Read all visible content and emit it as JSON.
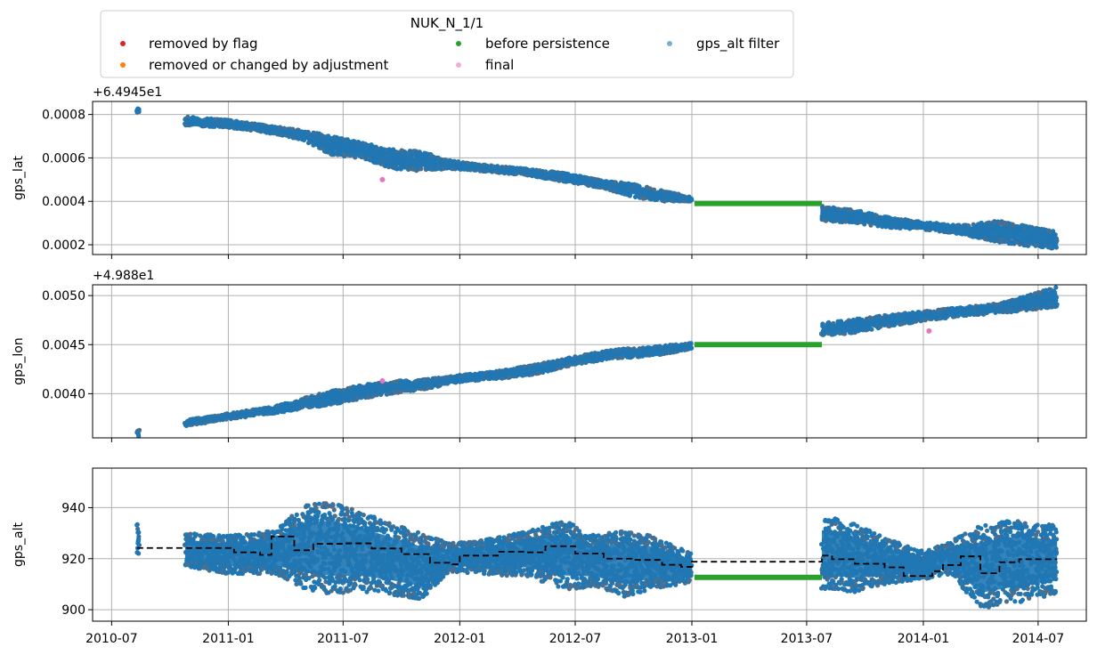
{
  "legend": {
    "title": "NUK_N_1/1",
    "location": "top-left, above first panel",
    "entries": [
      {
        "label": "removed by flag",
        "color": "#d62728"
      },
      {
        "label": "removed or changed by adjustment",
        "color": "#ff7f0e"
      },
      {
        "label": "before persistence",
        "color": "#2ca02c"
      },
      {
        "label": "final",
        "color": "#e377c2"
      },
      {
        "label": "gps_alt filter",
        "color": "#1f77b4"
      }
    ]
  },
  "colors": {
    "data": "#1f77b4",
    "data_alt": "#4a6f8f",
    "persistence": "#2ca02c",
    "final": "#e377c2",
    "filter_line": "#000000",
    "grid": "#b0b0b0"
  },
  "x_axis": {
    "type": "date",
    "range": [
      "2010-06-01",
      "2014-09-15"
    ],
    "ticks": [
      {
        "date": "2010-07-01",
        "label": "2010-07"
      },
      {
        "date": "2011-01-01",
        "label": "2011-01"
      },
      {
        "date": "2011-07-01",
        "label": "2011-07"
      },
      {
        "date": "2012-01-01",
        "label": "2012-01"
      },
      {
        "date": "2012-07-01",
        "label": "2012-07"
      },
      {
        "date": "2013-01-01",
        "label": "2013-01"
      },
      {
        "date": "2013-07-01",
        "label": "2013-07"
      },
      {
        "date": "2014-01-01",
        "label": "2014-01"
      },
      {
        "date": "2014-07-01",
        "label": "2014-07"
      }
    ]
  },
  "chart_data": [
    {
      "type": "scatter",
      "ylabel": "gps_lat",
      "offset_text": "+6.4945e1",
      "ylim": [
        0.000155,
        0.00086
      ],
      "yticks": [
        {
          "v": 0.0002,
          "label": "0.0002"
        },
        {
          "v": 0.0004,
          "label": "0.0004"
        },
        {
          "v": 0.0006,
          "label": "0.0006"
        },
        {
          "v": 0.0008,
          "label": "0.0008"
        }
      ],
      "grid": true,
      "series": [
        {
          "name": "gps_alt filter",
          "style": "band",
          "segments": [
            {
              "points": [
                [
                  "2010-08-10",
                  0.00083,
                  0.00081
                ],
                [
                  "2010-08-14",
                  0.00083,
                  0.00081
                ]
              ]
            },
            {
              "points": [
                [
                  "2010-10-25",
                  0.00079,
                  0.00075
                ],
                [
                  "2011-01-01",
                  0.000775,
                  0.00074
                ],
                [
                  "2011-03-15",
                  0.000745,
                  0.00071
                ],
                [
                  "2011-05-01",
                  0.000725,
                  0.00068
                ],
                [
                  "2011-06-15",
                  0.0007,
                  0.00061
                ],
                [
                  "2011-08-01",
                  0.00067,
                  0.0006
                ],
                [
                  "2011-09-15",
                  0.00064,
                  0.00055
                ],
                [
                  "2011-11-01",
                  0.00063,
                  0.00054
                ],
                [
                  "2011-12-15",
                  0.00059,
                  0.00055
                ],
                [
                  "2012-02-01",
                  0.00057,
                  0.00054
                ],
                [
                  "2012-04-15",
                  0.00055,
                  0.00052
                ],
                [
                  "2012-06-15",
                  0.00053,
                  0.00049
                ],
                [
                  "2012-08-15",
                  0.000495,
                  0.00046
                ],
                [
                  "2012-10-01",
                  0.00048,
                  0.00042
                ],
                [
                  "2012-11-15",
                  0.00045,
                  0.0004
                ],
                [
                  "2013-01-01",
                  0.00042,
                  0.0004
                ]
              ]
            },
            {
              "points": [
                [
                  "2013-07-25",
                  0.00038,
                  0.00031
                ],
                [
                  "2013-09-15",
                  0.00036,
                  0.0003
                ],
                [
                  "2013-11-01",
                  0.00033,
                  0.00028
                ],
                [
                  "2014-01-01",
                  0.000305,
                  0.00027
                ],
                [
                  "2014-03-01",
                  0.00029,
                  0.00025
                ],
                [
                  "2014-05-01",
                  0.00031,
                  0.00021
                ],
                [
                  "2014-07-31",
                  0.00026,
                  0.00018
                ]
              ]
            }
          ]
        },
        {
          "name": "before persistence",
          "style": "line",
          "points": [
            [
              "2013-01-05",
              0.00039
            ],
            [
              "2013-07-25",
              0.00039
            ]
          ]
        },
        {
          "name": "final",
          "style": "points",
          "points": [
            [
              "2011-09-01",
              0.0005
            ]
          ]
        }
      ]
    },
    {
      "type": "scatter",
      "ylabel": "gps_lon",
      "offset_text": "+4.988e1",
      "ylim": [
        0.00355,
        0.00511
      ],
      "yticks": [
        {
          "v": 0.004,
          "label": "0.0040"
        },
        {
          "v": 0.0045,
          "label": "0.0045"
        },
        {
          "v": 0.005,
          "label": "0.0050"
        }
      ],
      "grid": true,
      "series": [
        {
          "name": "gps_alt filter",
          "style": "band",
          "segments": [
            {
              "points": [
                [
                  "2010-08-10",
                  0.00363,
                  0.00356
                ],
                [
                  "2010-08-14",
                  0.00363,
                  0.00356
                ]
              ]
            },
            {
              "points": [
                [
                  "2010-10-25",
                  0.00373,
                  0.00367
                ],
                [
                  "2011-01-01",
                  0.0038,
                  0.00374
                ],
                [
                  "2011-03-15",
                  0.00387,
                  0.0038
                ],
                [
                  "2011-05-01",
                  0.00396,
                  0.00385
                ],
                [
                  "2011-06-15",
                  0.00403,
                  0.00389
                ],
                [
                  "2011-08-01",
                  0.00409,
                  0.00395
                ],
                [
                  "2011-09-15",
                  0.00413,
                  0.004
                ],
                [
                  "2011-11-01",
                  0.00414,
                  0.00404
                ],
                [
                  "2012-01-01",
                  0.00419,
                  0.00412
                ],
                [
                  "2012-03-01",
                  0.00423,
                  0.00415
                ],
                [
                  "2012-05-01",
                  0.0043,
                  0.0042
                ],
                [
                  "2012-07-01",
                  0.00438,
                  0.0043
                ],
                [
                  "2012-09-01",
                  0.00445,
                  0.00436
                ],
                [
                  "2012-11-01",
                  0.00448,
                  0.00438
                ],
                [
                  "2013-01-01",
                  0.00452,
                  0.00446
                ]
              ]
            },
            {
              "points": [
                [
                  "2013-07-25",
                  0.00472,
                  0.00459
                ],
                [
                  "2013-09-15",
                  0.00476,
                  0.00462
                ],
                [
                  "2013-11-01",
                  0.0048,
                  0.00468
                ],
                [
                  "2014-01-01",
                  0.00484,
                  0.00474
                ],
                [
                  "2014-03-01",
                  0.00488,
                  0.00479
                ],
                [
                  "2014-05-01",
                  0.00492,
                  0.00482
                ],
                [
                  "2014-07-31",
                  0.00509,
                  0.00488
                ]
              ]
            }
          ]
        },
        {
          "name": "before persistence",
          "style": "line",
          "points": [
            [
              "2013-01-05",
              0.0045
            ],
            [
              "2013-07-25",
              0.0045
            ]
          ]
        },
        {
          "name": "final",
          "style": "points",
          "points": [
            [
              "2011-09-01",
              0.00413
            ],
            [
              "2014-01-10",
              0.00464
            ]
          ]
        }
      ]
    },
    {
      "type": "scatter",
      "ylabel": "gps_alt",
      "offset_text": "",
      "ylim": [
        895.5,
        955.5
      ],
      "yticks": [
        {
          "v": 900,
          "label": "900"
        },
        {
          "v": 920,
          "label": "920"
        },
        {
          "v": 940,
          "label": "940"
        }
      ],
      "grid": true,
      "series": [
        {
          "name": "gps_alt filter",
          "style": "band",
          "segments": [
            {
              "points": [
                [
                  "2010-08-10",
                  934,
                  922
                ],
                [
                  "2010-08-14",
                  934,
                  922
                ]
              ]
            },
            {
              "points": [
                [
                  "2010-10-25",
                  930,
                  917
                ],
                [
                  "2011-01-01",
                  929,
                  914
                ],
                [
                  "2011-03-15",
                  931,
                  914
                ],
                [
                  "2011-05-01",
                  941,
                  908
                ],
                [
                  "2011-06-15",
                  942,
                  906
                ],
                [
                  "2011-08-01",
                  938,
                  907
                ],
                [
                  "2011-09-15",
                  934,
                  906
                ],
                [
                  "2011-11-01",
                  930,
                  904
                ],
                [
                  "2011-12-15",
                  926,
                  915
                ],
                [
                  "2012-02-01",
                  927,
                  914
                ],
                [
                  "2012-04-15",
                  931,
                  913
                ],
                [
                  "2012-06-15",
                  935,
                  908
                ],
                [
                  "2012-08-01",
                  929,
                  909
                ],
                [
                  "2012-09-15",
                  931,
                  905
                ],
                [
                  "2012-11-01",
                  929,
                  908
                ],
                [
                  "2013-01-01",
                  922,
                  911
                ]
              ]
            },
            {
              "points": [
                [
                  "2013-07-25",
                  937,
                  908
                ],
                [
                  "2013-09-15",
                  934,
                  907
                ],
                [
                  "2013-11-01",
                  928,
                  910
                ],
                [
                  "2014-01-01",
                  923,
                  912
                ],
                [
                  "2014-02-15",
                  927,
                  914
                ],
                [
                  "2014-04-01",
                  933,
                  900
                ],
                [
                  "2014-05-15",
                  935,
                  902
                ],
                [
                  "2014-07-31",
                  933,
                  906
                ]
              ]
            }
          ]
        },
        {
          "name": "before persistence",
          "style": "line",
          "points": [
            [
              "2013-01-05",
              912.7
            ],
            [
              "2013-07-25",
              912.7
            ]
          ]
        },
        {
          "name": "gps_alt filter",
          "style": "dashed-step",
          "points": [
            [
              "2010-08-10",
              924.2
            ],
            [
              "2011-01-10",
              922.5
            ],
            [
              "2011-02-20",
              921.5
            ],
            [
              "2011-03-10",
              928.7
            ],
            [
              "2011-04-15",
              923.3
            ],
            [
              "2011-05-15",
              925.8
            ],
            [
              "2011-07-01",
              926
            ],
            [
              "2011-08-15",
              924
            ],
            [
              "2011-10-01",
              921.8
            ],
            [
              "2011-11-15",
              918.4
            ],
            [
              "2011-12-20",
              917.8
            ],
            [
              "2012-01-01",
              921.2
            ],
            [
              "2012-03-01",
              922.7
            ],
            [
              "2012-04-15",
              922.5
            ],
            [
              "2012-05-15",
              924.9
            ],
            [
              "2012-07-01",
              922
            ],
            [
              "2012-08-15",
              920
            ],
            [
              "2012-10-01",
              919.5
            ],
            [
              "2012-11-15",
              917.6
            ],
            [
              "2012-12-15",
              916.8
            ],
            [
              "2013-01-01",
              918.8
            ],
            [
              "2013-07-15",
              918.8
            ],
            [
              "2013-07-25",
              921.2
            ],
            [
              "2013-08-10",
              919.8
            ],
            [
              "2013-09-15",
              918
            ],
            [
              "2013-11-01",
              916.6
            ],
            [
              "2013-12-01",
              913.2
            ],
            [
              "2014-01-15",
              915.1
            ],
            [
              "2014-02-01",
              917.5
            ],
            [
              "2014-03-01",
              920.9
            ],
            [
              "2014-04-01",
              914.3
            ],
            [
              "2014-05-01",
              918.6
            ],
            [
              "2014-06-01",
              919.8
            ],
            [
              "2014-07-31",
              919.8
            ]
          ]
        }
      ]
    }
  ]
}
